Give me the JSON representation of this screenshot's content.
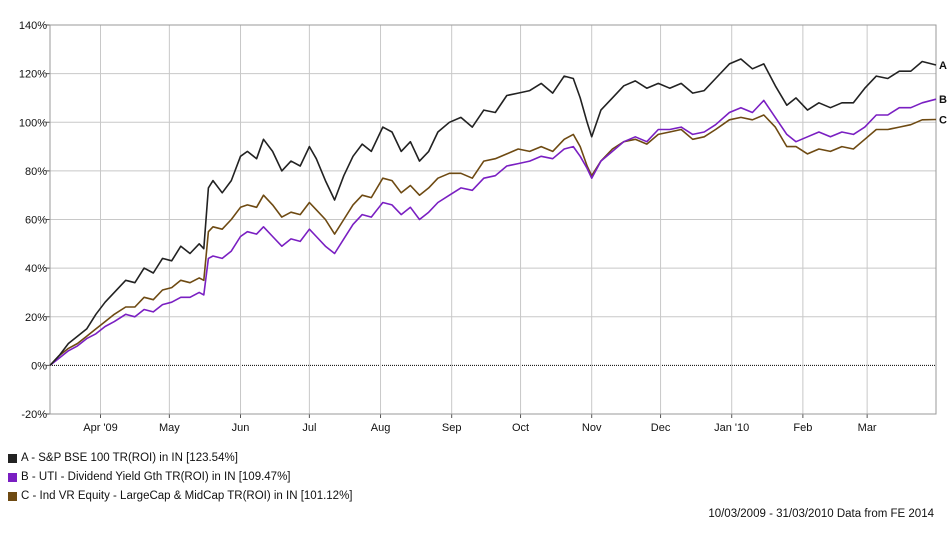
{
  "chart_data": {
    "type": "line",
    "ylim": [
      -20,
      140
    ],
    "yticks": [
      -20,
      0,
      20,
      40,
      60,
      80,
      100,
      120,
      140
    ],
    "ytick_labels": [
      "-20%",
      "0%",
      "20%",
      "40%",
      "60%",
      "80%",
      "100%",
      "120%",
      "140%"
    ],
    "x_range": [
      "2009-03-10",
      "2010-03-31"
    ],
    "xtick_labels": [
      {
        "date": "2009-04-01",
        "label": "Apr '09"
      },
      {
        "date": "2009-05-01",
        "label": "May"
      },
      {
        "date": "2009-06-01",
        "label": "Jun"
      },
      {
        "date": "2009-07-01",
        "label": "Jul"
      },
      {
        "date": "2009-08-01",
        "label": "Aug"
      },
      {
        "date": "2009-09-01",
        "label": "Sep"
      },
      {
        "date": "2009-10-01",
        "label": "Oct"
      },
      {
        "date": "2009-11-01",
        "label": "Nov"
      },
      {
        "date": "2009-12-01",
        "label": "Dec"
      },
      {
        "date": "2010-01-01",
        "label": "Jan '10"
      },
      {
        "date": "2010-02-01",
        "label": "Feb"
      },
      {
        "date": "2010-03-01",
        "label": "Mar"
      }
    ],
    "grid": true,
    "zero_line": "dotted",
    "series": [
      {
        "end_label": "A",
        "color": "#222222",
        "points": [
          [
            "2009-03-10",
            0
          ],
          [
            "2009-03-14",
            4
          ],
          [
            "2009-03-18",
            9
          ],
          [
            "2009-03-22",
            12
          ],
          [
            "2009-03-26",
            15
          ],
          [
            "2009-03-30",
            21
          ],
          [
            "2009-04-03",
            26
          ],
          [
            "2009-04-07",
            30
          ],
          [
            "2009-04-12",
            35
          ],
          [
            "2009-04-16",
            34
          ],
          [
            "2009-04-20",
            40
          ],
          [
            "2009-04-24",
            38
          ],
          [
            "2009-04-28",
            44
          ],
          [
            "2009-05-02",
            43
          ],
          [
            "2009-05-06",
            49
          ],
          [
            "2009-05-10",
            46
          ],
          [
            "2009-05-14",
            50
          ],
          [
            "2009-05-16",
            48
          ],
          [
            "2009-05-18",
            73
          ],
          [
            "2009-05-20",
            76
          ],
          [
            "2009-05-24",
            71
          ],
          [
            "2009-05-28",
            76
          ],
          [
            "2009-06-01",
            86
          ],
          [
            "2009-06-04",
            88
          ],
          [
            "2009-06-08",
            85
          ],
          [
            "2009-06-11",
            93
          ],
          [
            "2009-06-15",
            88
          ],
          [
            "2009-06-19",
            80
          ],
          [
            "2009-06-23",
            84
          ],
          [
            "2009-06-27",
            82
          ],
          [
            "2009-07-01",
            90
          ],
          [
            "2009-07-04",
            85
          ],
          [
            "2009-07-08",
            76
          ],
          [
            "2009-07-12",
            68
          ],
          [
            "2009-07-16",
            78
          ],
          [
            "2009-07-20",
            86
          ],
          [
            "2009-07-24",
            91
          ],
          [
            "2009-07-28",
            88
          ],
          [
            "2009-08-02",
            98
          ],
          [
            "2009-08-06",
            96
          ],
          [
            "2009-08-10",
            88
          ],
          [
            "2009-08-14",
            92
          ],
          [
            "2009-08-18",
            84
          ],
          [
            "2009-08-22",
            88
          ],
          [
            "2009-08-26",
            96
          ],
          [
            "2009-08-31",
            100
          ],
          [
            "2009-09-05",
            102
          ],
          [
            "2009-09-10",
            98
          ],
          [
            "2009-09-15",
            105
          ],
          [
            "2009-09-20",
            104
          ],
          [
            "2009-09-25",
            111
          ],
          [
            "2009-09-30",
            112
          ],
          [
            "2009-10-05",
            113
          ],
          [
            "2009-10-10",
            116
          ],
          [
            "2009-10-15",
            112
          ],
          [
            "2009-10-20",
            119
          ],
          [
            "2009-10-24",
            118
          ],
          [
            "2009-10-27",
            110
          ],
          [
            "2009-10-30",
            100
          ],
          [
            "2009-11-01",
            94
          ],
          [
            "2009-11-05",
            105
          ],
          [
            "2009-11-10",
            110
          ],
          [
            "2009-11-15",
            115
          ],
          [
            "2009-11-20",
            117
          ],
          [
            "2009-11-25",
            114
          ],
          [
            "2009-11-30",
            116
          ],
          [
            "2009-12-05",
            114
          ],
          [
            "2009-12-10",
            116
          ],
          [
            "2009-12-15",
            112
          ],
          [
            "2009-12-20",
            113
          ],
          [
            "2009-12-25",
            118
          ],
          [
            "2009-12-31",
            124
          ],
          [
            "2010-01-05",
            126
          ],
          [
            "2010-01-10",
            122
          ],
          [
            "2010-01-15",
            124
          ],
          [
            "2010-01-20",
            115
          ],
          [
            "2010-01-25",
            107
          ],
          [
            "2010-01-29",
            110
          ],
          [
            "2010-02-03",
            105
          ],
          [
            "2010-02-08",
            108
          ],
          [
            "2010-02-13",
            106
          ],
          [
            "2010-02-18",
            108
          ],
          [
            "2010-02-23",
            108
          ],
          [
            "2010-02-28",
            114
          ],
          [
            "2010-03-05",
            119
          ],
          [
            "2010-03-10",
            118
          ],
          [
            "2010-03-15",
            121
          ],
          [
            "2010-03-20",
            121
          ],
          [
            "2010-03-25",
            125
          ],
          [
            "2010-03-31",
            123.54
          ]
        ]
      },
      {
        "end_label": "B",
        "color": "#7a1fc2",
        "points": [
          [
            "2009-03-10",
            0
          ],
          [
            "2009-03-14",
            3
          ],
          [
            "2009-03-18",
            6
          ],
          [
            "2009-03-22",
            8
          ],
          [
            "2009-03-26",
            11
          ],
          [
            "2009-03-30",
            13
          ],
          [
            "2009-04-03",
            16
          ],
          [
            "2009-04-07",
            18
          ],
          [
            "2009-04-12",
            21
          ],
          [
            "2009-04-16",
            20
          ],
          [
            "2009-04-20",
            23
          ],
          [
            "2009-04-24",
            22
          ],
          [
            "2009-04-28",
            25
          ],
          [
            "2009-05-02",
            26
          ],
          [
            "2009-05-06",
            28
          ],
          [
            "2009-05-10",
            28
          ],
          [
            "2009-05-14",
            30
          ],
          [
            "2009-05-16",
            29
          ],
          [
            "2009-05-18",
            44
          ],
          [
            "2009-05-20",
            45
          ],
          [
            "2009-05-24",
            44
          ],
          [
            "2009-05-28",
            47
          ],
          [
            "2009-06-01",
            53
          ],
          [
            "2009-06-04",
            55
          ],
          [
            "2009-06-08",
            54
          ],
          [
            "2009-06-11",
            57
          ],
          [
            "2009-06-15",
            53
          ],
          [
            "2009-06-19",
            49
          ],
          [
            "2009-06-23",
            52
          ],
          [
            "2009-06-27",
            51
          ],
          [
            "2009-07-01",
            56
          ],
          [
            "2009-07-04",
            53
          ],
          [
            "2009-07-08",
            49
          ],
          [
            "2009-07-12",
            46
          ],
          [
            "2009-07-16",
            52
          ],
          [
            "2009-07-20",
            58
          ],
          [
            "2009-07-24",
            62
          ],
          [
            "2009-07-28",
            61
          ],
          [
            "2009-08-02",
            67
          ],
          [
            "2009-08-06",
            66
          ],
          [
            "2009-08-10",
            62
          ],
          [
            "2009-08-14",
            65
          ],
          [
            "2009-08-18",
            60
          ],
          [
            "2009-08-22",
            63
          ],
          [
            "2009-08-26",
            67
          ],
          [
            "2009-08-31",
            70
          ],
          [
            "2009-09-05",
            73
          ],
          [
            "2009-09-10",
            72
          ],
          [
            "2009-09-15",
            77
          ],
          [
            "2009-09-20",
            78
          ],
          [
            "2009-09-25",
            82
          ],
          [
            "2009-09-30",
            83
          ],
          [
            "2009-10-05",
            84
          ],
          [
            "2009-10-10",
            86
          ],
          [
            "2009-10-15",
            85
          ],
          [
            "2009-10-20",
            89
          ],
          [
            "2009-10-24",
            90
          ],
          [
            "2009-10-27",
            86
          ],
          [
            "2009-10-30",
            81
          ],
          [
            "2009-11-01",
            77
          ],
          [
            "2009-11-05",
            84
          ],
          [
            "2009-11-10",
            88
          ],
          [
            "2009-11-15",
            92
          ],
          [
            "2009-11-20",
            94
          ],
          [
            "2009-11-25",
            92
          ],
          [
            "2009-11-30",
            97
          ],
          [
            "2009-12-05",
            97
          ],
          [
            "2009-12-10",
            98
          ],
          [
            "2009-12-15",
            95
          ],
          [
            "2009-12-20",
            96
          ],
          [
            "2009-12-25",
            99
          ],
          [
            "2009-12-31",
            104
          ],
          [
            "2010-01-05",
            106
          ],
          [
            "2010-01-10",
            104
          ],
          [
            "2010-01-15",
            109
          ],
          [
            "2010-01-20",
            102
          ],
          [
            "2010-01-25",
            95
          ],
          [
            "2010-01-29",
            92
          ],
          [
            "2010-02-03",
            94
          ],
          [
            "2010-02-08",
            96
          ],
          [
            "2010-02-13",
            94
          ],
          [
            "2010-02-18",
            96
          ],
          [
            "2010-02-23",
            95
          ],
          [
            "2010-02-28",
            98
          ],
          [
            "2010-03-05",
            103
          ],
          [
            "2010-03-10",
            103
          ],
          [
            "2010-03-15",
            106
          ],
          [
            "2010-03-20",
            106
          ],
          [
            "2010-03-25",
            108
          ],
          [
            "2010-03-31",
            109.47
          ]
        ]
      },
      {
        "end_label": "C",
        "color": "#6e4a12",
        "points": [
          [
            "2009-03-10",
            0
          ],
          [
            "2009-03-14",
            4
          ],
          [
            "2009-03-18",
            7
          ],
          [
            "2009-03-22",
            9
          ],
          [
            "2009-03-26",
            12
          ],
          [
            "2009-03-30",
            15
          ],
          [
            "2009-04-03",
            18
          ],
          [
            "2009-04-07",
            21
          ],
          [
            "2009-04-12",
            24
          ],
          [
            "2009-04-16",
            24
          ],
          [
            "2009-04-20",
            28
          ],
          [
            "2009-04-24",
            27
          ],
          [
            "2009-04-28",
            31
          ],
          [
            "2009-05-02",
            32
          ],
          [
            "2009-05-06",
            35
          ],
          [
            "2009-05-10",
            34
          ],
          [
            "2009-05-14",
            36
          ],
          [
            "2009-05-16",
            35
          ],
          [
            "2009-05-18",
            55
          ],
          [
            "2009-05-20",
            57
          ],
          [
            "2009-05-24",
            56
          ],
          [
            "2009-05-28",
            60
          ],
          [
            "2009-06-01",
            65
          ],
          [
            "2009-06-04",
            66
          ],
          [
            "2009-06-08",
            65
          ],
          [
            "2009-06-11",
            70
          ],
          [
            "2009-06-15",
            66
          ],
          [
            "2009-06-19",
            61
          ],
          [
            "2009-06-23",
            63
          ],
          [
            "2009-06-27",
            62
          ],
          [
            "2009-07-01",
            67
          ],
          [
            "2009-07-04",
            64
          ],
          [
            "2009-07-08",
            60
          ],
          [
            "2009-07-12",
            54
          ],
          [
            "2009-07-16",
            60
          ],
          [
            "2009-07-20",
            66
          ],
          [
            "2009-07-24",
            70
          ],
          [
            "2009-07-28",
            69
          ],
          [
            "2009-08-02",
            77
          ],
          [
            "2009-08-06",
            76
          ],
          [
            "2009-08-10",
            71
          ],
          [
            "2009-08-14",
            74
          ],
          [
            "2009-08-18",
            70
          ],
          [
            "2009-08-22",
            73
          ],
          [
            "2009-08-26",
            77
          ],
          [
            "2009-08-31",
            79
          ],
          [
            "2009-09-05",
            79
          ],
          [
            "2009-09-10",
            77
          ],
          [
            "2009-09-15",
            84
          ],
          [
            "2009-09-20",
            85
          ],
          [
            "2009-09-25",
            87
          ],
          [
            "2009-09-30",
            89
          ],
          [
            "2009-10-05",
            88
          ],
          [
            "2009-10-10",
            90
          ],
          [
            "2009-10-15",
            88
          ],
          [
            "2009-10-20",
            93
          ],
          [
            "2009-10-24",
            95
          ],
          [
            "2009-10-27",
            90
          ],
          [
            "2009-10-30",
            82
          ],
          [
            "2009-11-01",
            78
          ],
          [
            "2009-11-05",
            84
          ],
          [
            "2009-11-10",
            89
          ],
          [
            "2009-11-15",
            92
          ],
          [
            "2009-11-20",
            93
          ],
          [
            "2009-11-25",
            91
          ],
          [
            "2009-11-30",
            95
          ],
          [
            "2009-12-05",
            96
          ],
          [
            "2009-12-10",
            97
          ],
          [
            "2009-12-15",
            93
          ],
          [
            "2009-12-20",
            94
          ],
          [
            "2009-12-25",
            97
          ],
          [
            "2009-12-31",
            101
          ],
          [
            "2010-01-05",
            102
          ],
          [
            "2010-01-10",
            101
          ],
          [
            "2010-01-15",
            103
          ],
          [
            "2010-01-20",
            98
          ],
          [
            "2010-01-25",
            90
          ],
          [
            "2010-01-29",
            90
          ],
          [
            "2010-02-03",
            87
          ],
          [
            "2010-02-08",
            89
          ],
          [
            "2010-02-13",
            88
          ],
          [
            "2010-02-18",
            90
          ],
          [
            "2010-02-23",
            89
          ],
          [
            "2010-02-28",
            93
          ],
          [
            "2010-03-05",
            97
          ],
          [
            "2010-03-10",
            97
          ],
          [
            "2010-03-15",
            98
          ],
          [
            "2010-03-20",
            99
          ],
          [
            "2010-03-25",
            101
          ],
          [
            "2010-03-31",
            101.12
          ]
        ]
      }
    ]
  },
  "legend": [
    {
      "text": "A - S&P BSE 100 TR(ROI) in IN [123.54%]",
      "color": "#222222"
    },
    {
      "text": "B - UTI - Dividend Yield Gth TR(ROI) in IN [109.47%]",
      "color": "#7a1fc2"
    },
    {
      "text": "C - Ind VR Equity - LargeCap & MidCap TR(ROI) in IN [101.12%]",
      "color": "#6e4a12"
    }
  ],
  "footer": "10/03/2009 - 31/03/2010 Data from FE 2014"
}
